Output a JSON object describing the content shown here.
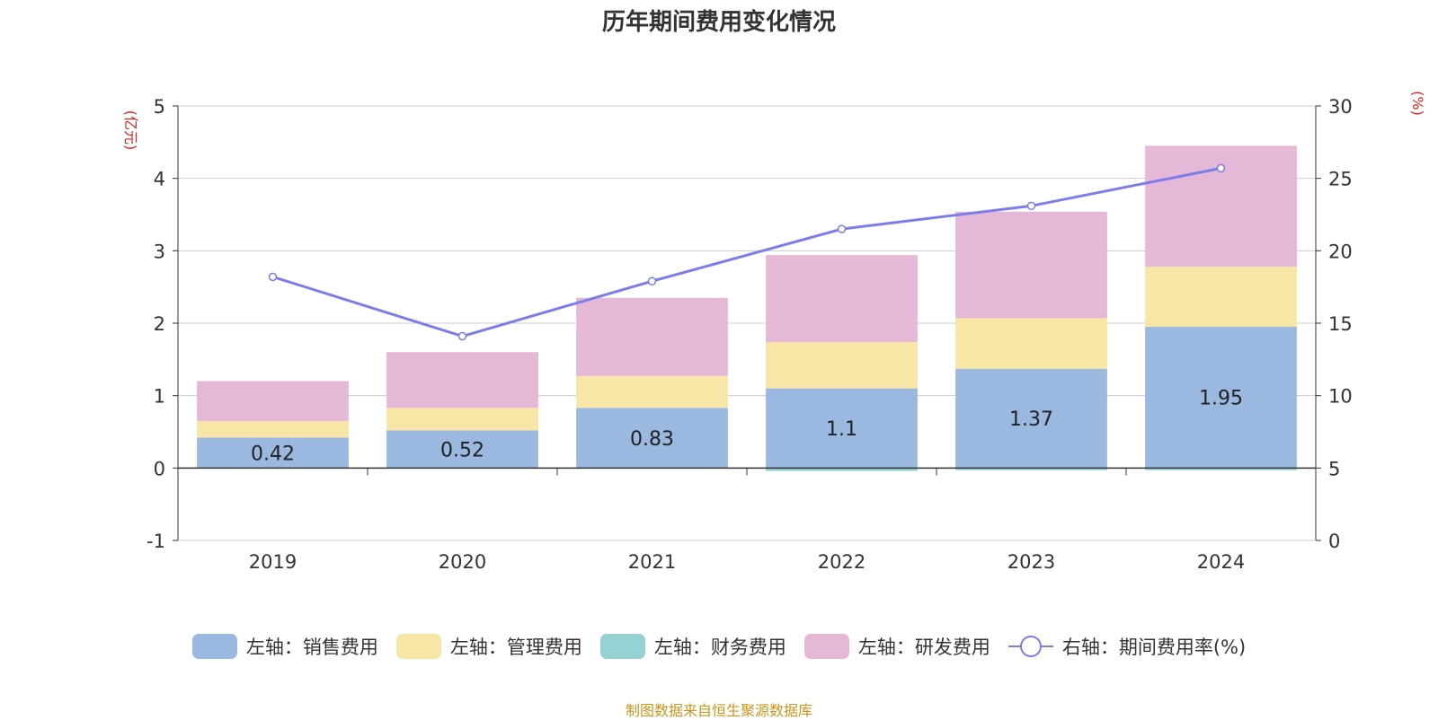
{
  "title": "历年期间费用变化情况",
  "source": "制图数据来自恒生聚源数据库",
  "chart_data": {
    "type": "bar",
    "stacked": true,
    "categories": [
      "2019",
      "2020",
      "2021",
      "2022",
      "2023",
      "2024"
    ],
    "left_axis": {
      "label": "(亿元)",
      "ylim": [
        -1,
        5
      ],
      "ticks": [
        "-1",
        "0",
        "1",
        "2",
        "3",
        "4",
        "5"
      ]
    },
    "right_axis": {
      "label": "(%)",
      "ylim": [
        0,
        30
      ],
      "ticks": [
        "0",
        "5",
        "10",
        "15",
        "20",
        "25",
        "30"
      ]
    },
    "series": [
      {
        "name": "左轴：销售费用",
        "axis": "left",
        "color": "#9bb8e0",
        "values": [
          0.42,
          0.52,
          0.83,
          1.1,
          1.37,
          1.95
        ],
        "labels": [
          "0.42",
          "0.52",
          "0.83",
          "1.1",
          "1.37",
          "1.95"
        ]
      },
      {
        "name": "左轴：管理费用",
        "axis": "left",
        "color": "#f7e6a6",
        "values": [
          0.23,
          0.31,
          0.44,
          0.64,
          0.7,
          0.83
        ]
      },
      {
        "name": "左轴：财务费用",
        "axis": "left",
        "color": "#95d2d3",
        "values": [
          0.0,
          0.0,
          0.0,
          -0.04,
          -0.03,
          -0.03
        ]
      },
      {
        "name": "左轴：研发费用",
        "axis": "left",
        "color": "#e6b8d8",
        "values": [
          0.55,
          0.77,
          1.08,
          1.2,
          1.47,
          1.67
        ]
      }
    ],
    "line_series": {
      "name": "右轴：期间费用率(%)",
      "axis": "right",
      "color": "#7b7de8",
      "values": [
        18.2,
        14.1,
        17.9,
        21.5,
        23.1,
        25.7
      ]
    },
    "grid": true,
    "legend": "bottom"
  }
}
